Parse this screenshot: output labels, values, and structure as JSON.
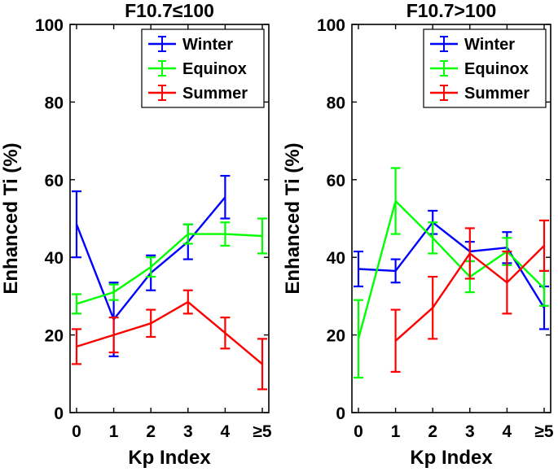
{
  "chart_data": [
    {
      "type": "line",
      "title": "F10.7≤100",
      "xlabel": "Kp Index",
      "ylabel": "Enhanced Ti (%)",
      "categories": [
        "0",
        "1",
        "2",
        "3",
        "4",
        "≥5"
      ],
      "ylim": [
        0,
        100
      ],
      "yticks": [
        "0",
        "20",
        "40",
        "60",
        "80",
        "100"
      ],
      "grid": false,
      "legend_position": "top-right",
      "series": [
        {
          "name": "Winter",
          "color": "#0000ff",
          "values": [
            48.5,
            24,
            36,
            44,
            55.5,
            null
          ],
          "errors": [
            8.5,
            9.5,
            4.5,
            4.5,
            5.5,
            null
          ]
        },
        {
          "name": "Equinox",
          "color": "#00ff00",
          "values": [
            28,
            31,
            37.5,
            46,
            46,
            45.5
          ],
          "errors": [
            2.5,
            2.0,
            2.5,
            2.5,
            3.0,
            4.5
          ]
        },
        {
          "name": "Summer",
          "color": "#ff0000",
          "values": [
            17,
            20,
            23,
            28.5,
            20.5,
            12.5
          ],
          "errors": [
            4.5,
            4.5,
            3.5,
            3.0,
            4.0,
            6.5
          ]
        }
      ]
    },
    {
      "type": "line",
      "title": "F10.7>100",
      "xlabel": "Kp Index",
      "ylabel": "Enhanced Ti (%)",
      "categories": [
        "0",
        "1",
        "2",
        "3",
        "4",
        "≥5"
      ],
      "ylim": [
        0,
        100
      ],
      "yticks": [
        "0",
        "20",
        "40",
        "60",
        "80",
        "100"
      ],
      "grid": false,
      "legend_position": "top-right",
      "series": [
        {
          "name": "Winter",
          "color": "#0000ff",
          "values": [
            37,
            36.5,
            49,
            41.5,
            42.5,
            27
          ],
          "errors": [
            4.5,
            3.0,
            3.0,
            2.5,
            4.0,
            5.5
          ]
        },
        {
          "name": "Equinox",
          "color": "#00ff00",
          "values": [
            19,
            54.5,
            45,
            35,
            41.5,
            32
          ],
          "errors": [
            10,
            8.5,
            4.0,
            4.0,
            3.5,
            4.5
          ]
        },
        {
          "name": "Summer",
          "color": "#ff0000",
          "values": [
            null,
            18.5,
            27,
            41,
            33.5,
            43
          ],
          "errors": [
            null,
            8.0,
            8.0,
            6.5,
            8.0,
            6.5
          ]
        }
      ]
    }
  ]
}
